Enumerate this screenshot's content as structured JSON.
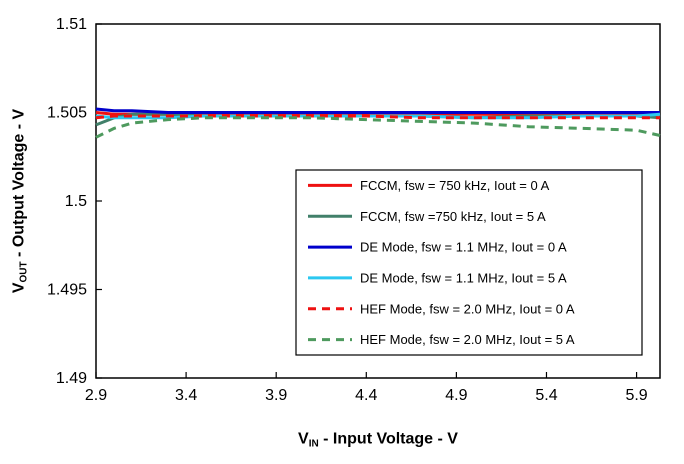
{
  "figure": {
    "x_axis_title": {
      "prefix": "V",
      "sub": "IN",
      "rest": " - Input Voltage - V"
    },
    "y_axis_title": {
      "prefix": "V",
      "sub": "OUT",
      "rest": " - Output Voltage - V"
    }
  },
  "chart_data": {
    "type": "line",
    "title": "",
    "xlabel": "VIN - Input Voltage - V",
    "ylabel": "VOUT - Output Voltage - V",
    "xlim": [
      2.9,
      6.03
    ],
    "ylim": [
      1.49,
      1.51
    ],
    "xticks": [
      2.9,
      3.4,
      3.9,
      4.4,
      4.9,
      5.4,
      5.9
    ],
    "xtick_labels": [
      "2.9",
      "3.4",
      "3.9",
      "4.4",
      "4.9",
      "5.4",
      "5.9"
    ],
    "yticks": [
      1.49,
      1.495,
      1.5,
      1.505,
      1.51
    ],
    "ytick_labels": [
      "1.49",
      "1.495",
      "1.5",
      "1.505",
      "1.51"
    ],
    "grid": false,
    "legend_position": "inside center-right",
    "x": [
      2.9,
      3.0,
      3.1,
      3.3,
      3.5,
      3.8,
      4.1,
      4.4,
      4.7,
      5.0,
      5.3,
      5.6,
      5.9,
      6.03
    ],
    "series": [
      {
        "name": "FCCM, fsw = 750 kHz, Iout = 0 A",
        "color": "#ee1111",
        "dash": "solid",
        "values": [
          1.505,
          1.5049,
          1.5049,
          1.5049,
          1.5049,
          1.5049,
          1.5049,
          1.5049,
          1.5049,
          1.5049,
          1.5049,
          1.5049,
          1.5049,
          1.5049
        ]
      },
      {
        "name": "FCCM, fsw =750 kHz, Iout = 5 A",
        "color": "#41806a",
        "dash": "solid",
        "values": [
          1.5043,
          1.5047,
          1.5049,
          1.5049,
          1.5048,
          1.5048,
          1.5048,
          1.5048,
          1.5048,
          1.5047,
          1.5048,
          1.5048,
          1.5048,
          1.5047
        ]
      },
      {
        "name": "DE Mode, fsw = 1.1 MHz, Iout = 0 A",
        "color": "#0000cc",
        "dash": "solid",
        "values": [
          1.5052,
          1.5051,
          1.5051,
          1.505,
          1.505,
          1.505,
          1.505,
          1.505,
          1.505,
          1.505,
          1.505,
          1.505,
          1.505,
          1.505
        ]
      },
      {
        "name": "DE Mode, fsw = 1.1 MHz, Iout = 5 A",
        "color": "#2bc8f0",
        "dash": "solid",
        "values": [
          1.5048,
          1.5047,
          1.5047,
          1.5047,
          1.5048,
          1.5048,
          1.5048,
          1.5048,
          1.5048,
          1.5047,
          1.5047,
          1.5048,
          1.5048,
          1.5049
        ]
      },
      {
        "name": "HEF Mode, fsw = 2.0 MHz, Iout = 0 A",
        "color": "#ee1111",
        "dash": "dashed",
        "values": [
          1.5047,
          1.5048,
          1.5048,
          1.5048,
          1.5048,
          1.5048,
          1.5048,
          1.5048,
          1.5047,
          1.5047,
          1.5047,
          1.5047,
          1.5047,
          1.5047
        ]
      },
      {
        "name": "HEF Mode, fsw = 2.0 MHz, Iout = 5 A",
        "color": "#4e9a5e",
        "dash": "dashed",
        "values": [
          1.5036,
          1.5041,
          1.5044,
          1.5046,
          1.5047,
          1.5047,
          1.5047,
          1.5046,
          1.5045,
          1.5044,
          1.5042,
          1.5041,
          1.504,
          1.5037
        ]
      }
    ],
    "style": {
      "axis_color": "#000000",
      "plot_background": "#ffffff",
      "legend_border": "#000000",
      "line_width": 3
    }
  }
}
